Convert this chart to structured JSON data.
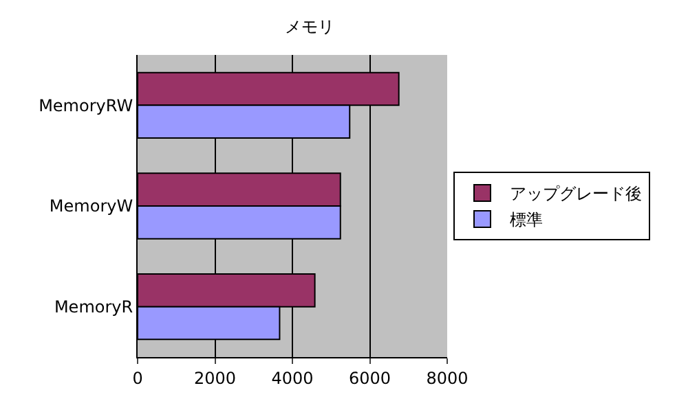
{
  "chart_data": {
    "type": "bar",
    "orientation": "horizontal",
    "title": "メモリ",
    "categories": [
      "MemoryRW",
      "MemoryW",
      "MemoryR"
    ],
    "series": [
      {
        "name": "アップグレード後",
        "color": "#993366",
        "values": [
          6750,
          5240,
          4580
        ]
      },
      {
        "name": "標準",
        "color": "#9999ff",
        "values": [
          5480,
          5240,
          3670
        ]
      }
    ],
    "xlim": [
      0,
      8000
    ],
    "xticks": [
      0,
      2000,
      4000,
      6000,
      8000
    ],
    "grid": "x",
    "legend": "right"
  }
}
